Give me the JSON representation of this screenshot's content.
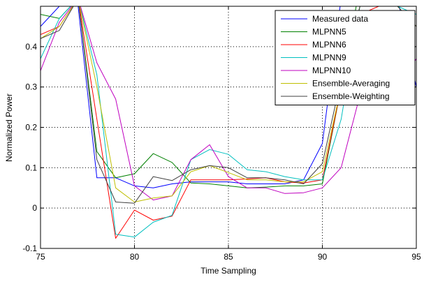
{
  "chart_data": {
    "type": "line",
    "xlabel": "Time Sampling",
    "ylabel": "Normalized Power",
    "xlim": [
      75,
      95
    ],
    "ylim": [
      -0.1,
      0.5
    ],
    "xticks": [
      75,
      80,
      85,
      90,
      95
    ],
    "xtick_labels": [
      "75",
      "80",
      "85",
      "90",
      "95"
    ],
    "yticks": [
      -0.1,
      0,
      0.1,
      0.2,
      0.3,
      0.4
    ],
    "ytick_labels": [
      "-0.1",
      "0",
      "0.1",
      "0.2",
      "0.3",
      "0.4"
    ],
    "grid": true,
    "grid_style": "dotted",
    "legend_position": "top-right",
    "series": [
      {
        "name": "Measured data",
        "color": "#0000ff",
        "x": [
          75,
          76,
          77,
          78,
          79,
          80,
          81,
          82,
          83,
          84,
          85,
          86,
          87,
          88,
          89,
          90,
          91,
          92,
          93,
          94,
          95
        ],
        "y": [
          0.45,
          0.5,
          0.5,
          0.075,
          0.075,
          0.055,
          0.05,
          0.06,
          0.065,
          0.065,
          0.065,
          0.06,
          0.06,
          0.06,
          0.07,
          0.16,
          0.52,
          0.55,
          0.55,
          0.52,
          0.3
        ]
      },
      {
        "name": "MLPNN5",
        "color": "#008000",
        "x": [
          75,
          76,
          77,
          78,
          79,
          80,
          81,
          82,
          83,
          84,
          85,
          86,
          87,
          88,
          89,
          90,
          91,
          92,
          93,
          94,
          95
        ],
        "y": [
          0.48,
          0.47,
          0.52,
          0.14,
          0.075,
          0.085,
          0.135,
          0.113,
          0.062,
          0.06,
          0.055,
          0.05,
          0.052,
          0.055,
          0.055,
          0.06,
          0.3,
          0.55,
          0.55,
          0.55,
          0.52
        ]
      },
      {
        "name": "MLPNN6",
        "color": "#ff0000",
        "x": [
          75,
          76,
          77,
          78,
          79,
          80,
          81,
          82,
          83,
          84,
          85,
          86,
          87,
          88,
          89,
          90,
          91,
          92,
          93,
          94,
          95
        ],
        "y": [
          0.43,
          0.45,
          0.52,
          0.22,
          -0.075,
          -0.005,
          -0.03,
          -0.02,
          0.07,
          0.07,
          0.07,
          0.072,
          0.075,
          0.065,
          0.062,
          0.07,
          0.3,
          0.48,
          0.5,
          0.5,
          0.5
        ]
      },
      {
        "name": "MLPNN9",
        "color": "#00bfbf",
        "x": [
          75,
          76,
          77,
          78,
          79,
          80,
          81,
          82,
          83,
          84,
          85,
          86,
          87,
          88,
          89,
          90,
          91,
          92,
          93,
          94,
          95
        ],
        "y": [
          0.37,
          0.47,
          0.52,
          0.33,
          -0.065,
          -0.072,
          -0.035,
          -0.018,
          0.12,
          0.145,
          0.133,
          0.095,
          0.09,
          0.078,
          0.07,
          0.07,
          0.22,
          0.5,
          0.52,
          0.5,
          0.48
        ]
      },
      {
        "name": "MLPNN10",
        "color": "#bf00bf",
        "x": [
          75,
          76,
          77,
          78,
          79,
          80,
          81,
          82,
          83,
          84,
          85,
          86,
          87,
          88,
          89,
          90,
          91,
          92,
          93,
          94,
          95
        ],
        "y": [
          0.34,
          0.46,
          0.52,
          0.36,
          0.27,
          0.055,
          0.02,
          0.03,
          0.12,
          0.157,
          0.078,
          0.05,
          0.05,
          0.036,
          0.038,
          0.05,
          0.1,
          0.28,
          0.45,
          0.3,
          0.37
        ]
      },
      {
        "name": "Ensemble-Averaging",
        "color": "#bfbf00",
        "x": [
          75,
          76,
          77,
          78,
          79,
          80,
          81,
          82,
          83,
          84,
          85,
          86,
          87,
          88,
          89,
          90,
          91,
          92,
          93,
          94,
          95
        ],
        "y": [
          0.42,
          0.45,
          0.52,
          0.3,
          0.05,
          0.015,
          0.025,
          0.03,
          0.09,
          0.105,
          0.088,
          0.07,
          0.07,
          0.065,
          0.065,
          0.09,
          0.3,
          0.5,
          0.52,
          0.5,
          0.45
        ]
      },
      {
        "name": "Ensemble-Weighting",
        "color": "#404040",
        "x": [
          75,
          76,
          77,
          78,
          79,
          80,
          81,
          82,
          83,
          84,
          85,
          86,
          87,
          88,
          89,
          90,
          91,
          92,
          93,
          94,
          95
        ],
        "y": [
          0.42,
          0.44,
          0.52,
          0.12,
          0.015,
          0.012,
          0.078,
          0.068,
          0.095,
          0.105,
          0.1,
          0.075,
          0.075,
          0.07,
          0.06,
          0.11,
          0.32,
          0.5,
          0.52,
          0.5,
          0.45
        ]
      }
    ]
  }
}
